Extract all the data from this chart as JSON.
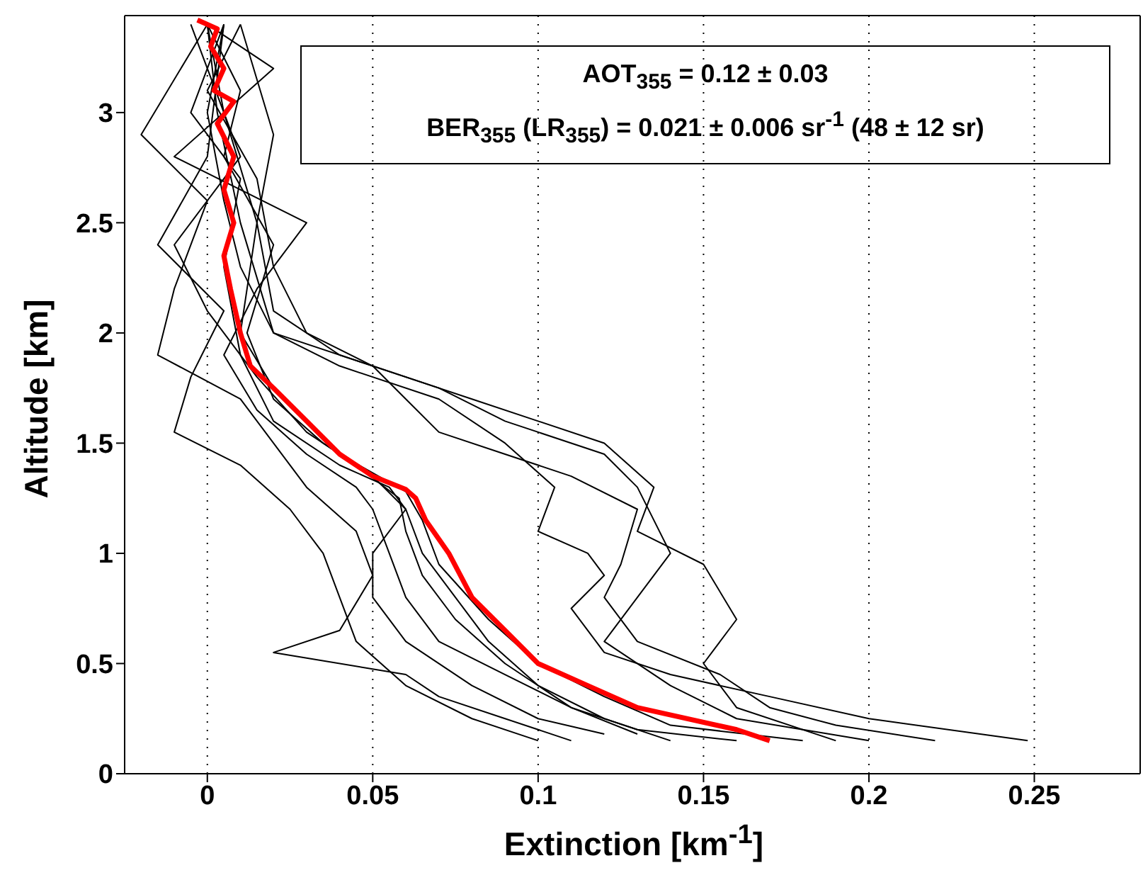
{
  "chart_data": {
    "type": "line",
    "xlabel": "Extinction [km$^{-1}$]",
    "ylabel": "Altitude [km]",
    "xlim": [
      -0.025,
      0.282
    ],
    "xticks": [
      0,
      0.05,
      0.1,
      0.15,
      0.2,
      0.25
    ],
    "ylim": [
      0,
      3.44
    ],
    "yticks": [
      0,
      0.5,
      1,
      1.5,
      2,
      2.5,
      3
    ],
    "grid": "x",
    "marker": "none",
    "line_style": "solid",
    "annotations": [
      "AOT$_{355}$ = 0.12 ± 0.03",
      "BER$_{355}$ (LR$_{355}$) = 0.021 ± 0.006 sr$^{-1}$ (48 ± 12 sr)"
    ],
    "series": [
      {
        "color": "#000000",
        "x": [
          0.248,
          0.2,
          0.17,
          0.14,
          0.12,
          0.11,
          0.12,
          0.115,
          0.1,
          0.105,
          0.09,
          0.07,
          0.04,
          0.02,
          0.01,
          0.005,
          0.0,
          0.005
        ],
        "values": [
          0.15,
          0.25,
          0.35,
          0.45,
          0.55,
          0.75,
          0.9,
          1.0,
          1.1,
          1.3,
          1.5,
          1.7,
          1.85,
          2.0,
          2.3,
          2.6,
          3.0,
          3.4
        ]
      },
      {
        "color": "#000000",
        "x": [
          0.22,
          0.19,
          0.17,
          0.155,
          0.13,
          0.12,
          0.125,
          0.13,
          0.11,
          0.09,
          0.07,
          0.06,
          0.05,
          0.02,
          0.01,
          0.003,
          0.0
        ],
        "values": [
          0.15,
          0.22,
          0.3,
          0.45,
          0.6,
          0.8,
          0.95,
          1.2,
          1.35,
          1.45,
          1.55,
          1.7,
          1.85,
          2.0,
          2.5,
          3.0,
          3.4
        ]
      },
      {
        "color": "#000000",
        "x": [
          0.2,
          0.16,
          0.14,
          0.12,
          0.13,
          0.14,
          0.13,
          0.12,
          0.09,
          0.07,
          0.05,
          0.03,
          0.02,
          0.015,
          0.0,
          0.01
        ],
        "values": [
          0.15,
          0.25,
          0.4,
          0.6,
          0.8,
          1.0,
          1.3,
          1.45,
          1.6,
          1.75,
          1.85,
          2.0,
          2.3,
          2.7,
          3.1,
          3.4
        ]
      },
      {
        "color": "#000000",
        "x": [
          0.12,
          0.1,
          0.08,
          0.06,
          0.05,
          0.05,
          0.06,
          0.055,
          0.04,
          0.02,
          0.01,
          0.005,
          0.01,
          -0.005,
          0.005
        ],
        "values": [
          0.18,
          0.25,
          0.4,
          0.6,
          0.8,
          1.0,
          1.2,
          1.3,
          1.4,
          1.6,
          1.9,
          2.3,
          2.7,
          3.0,
          3.4
        ]
      },
      {
        "color": "#000000",
        "x": [
          0.13,
          0.11,
          0.09,
          0.075,
          0.065,
          0.06,
          0.058,
          0.045,
          0.03,
          0.015,
          0.0,
          -0.01,
          0.01,
          0.0,
          -0.005
        ],
        "values": [
          0.18,
          0.3,
          0.5,
          0.7,
          0.9,
          1.1,
          1.25,
          1.4,
          1.55,
          1.8,
          2.1,
          2.4,
          2.8,
          3.2,
          3.4
        ]
      },
      {
        "color": "#000000",
        "x": [
          0.14,
          0.12,
          0.1,
          0.085,
          0.075,
          0.065,
          0.06,
          0.05,
          0.035,
          0.02,
          0.012,
          0.02,
          0.005,
          0.01,
          0.0
        ],
        "values": [
          0.15,
          0.25,
          0.4,
          0.6,
          0.8,
          1.0,
          1.2,
          1.35,
          1.5,
          1.7,
          2.0,
          2.4,
          2.8,
          3.1,
          3.4
        ]
      },
      {
        "color": "#000000",
        "x": [
          0.11,
          0.09,
          0.07,
          0.06,
          0.02,
          0.04,
          0.05,
          0.045,
          0.03,
          0.02,
          0.01,
          -0.015,
          -0.01,
          0.0,
          -0.02,
          0.0
        ],
        "values": [
          0.15,
          0.25,
          0.35,
          0.45,
          0.55,
          0.65,
          0.9,
          1.1,
          1.3,
          1.5,
          1.7,
          1.9,
          2.2,
          2.6,
          2.9,
          3.4
        ]
      },
      {
        "color": "#000000",
        "x": [
          0.18,
          0.14,
          0.12,
          0.1,
          0.085,
          0.07,
          0.065,
          0.06,
          0.04,
          0.03,
          0.02,
          0.01,
          0.015,
          0.02,
          0.01
        ],
        "values": [
          0.15,
          0.22,
          0.35,
          0.5,
          0.7,
          0.95,
          1.15,
          1.28,
          1.45,
          1.6,
          1.75,
          2.0,
          2.5,
          2.9,
          3.4
        ]
      },
      {
        "color": "#000000",
        "x": [
          0.1,
          0.08,
          0.06,
          0.045,
          0.04,
          0.035,
          0.025,
          0.01,
          -0.01,
          -0.005,
          0.005,
          -0.015,
          0.0,
          0.005
        ],
        "values": [
          0.15,
          0.25,
          0.4,
          0.6,
          0.8,
          1.0,
          1.2,
          1.4,
          1.55,
          1.8,
          2.1,
          2.4,
          2.8,
          3.4
        ]
      },
      {
        "color": "#000000",
        "x": [
          0.19,
          0.16,
          0.15,
          0.16,
          0.15,
          0.13,
          0.135,
          0.12,
          0.1,
          0.08,
          0.06,
          0.04,
          0.02,
          0.015,
          0.005,
          0.0
        ],
        "values": [
          0.15,
          0.3,
          0.5,
          0.7,
          0.95,
          1.1,
          1.3,
          1.5,
          1.6,
          1.7,
          1.8,
          1.9,
          2.1,
          2.5,
          3.0,
          3.4
        ]
      },
      {
        "color": "#000000",
        "x": [
          0.16,
          0.13,
          0.11,
          0.09,
          0.07,
          0.06,
          0.055,
          0.05,
          0.045,
          0.03,
          0.015,
          0.005,
          0.015,
          0.03,
          -0.01,
          0.02,
          0.0
        ],
        "values": [
          0.15,
          0.2,
          0.3,
          0.45,
          0.6,
          0.8,
          1.0,
          1.2,
          1.3,
          1.45,
          1.65,
          1.9,
          2.2,
          2.5,
          2.8,
          3.2,
          3.4
        ]
      },
      {
        "color": "#ff0000",
        "x": [
          0.17,
          0.16,
          0.13,
          0.115,
          0.1,
          0.09,
          0.08,
          0.073,
          0.066,
          0.063,
          0.06,
          0.05,
          0.04,
          0.03,
          0.02,
          0.013,
          0.01,
          0.007,
          0.005,
          0.008,
          0.005,
          0.008,
          0.003,
          0.008,
          0.002,
          0.005,
          0.001,
          0.003,
          -0.003
        ],
        "values": [
          0.15,
          0.2,
          0.3,
          0.4,
          0.5,
          0.65,
          0.8,
          1.0,
          1.15,
          1.25,
          1.29,
          1.35,
          1.45,
          1.6,
          1.75,
          1.85,
          2.0,
          2.2,
          2.35,
          2.5,
          2.65,
          2.8,
          2.95,
          3.05,
          3.1,
          3.2,
          3.3,
          3.38,
          3.42
        ]
      }
    ]
  }
}
